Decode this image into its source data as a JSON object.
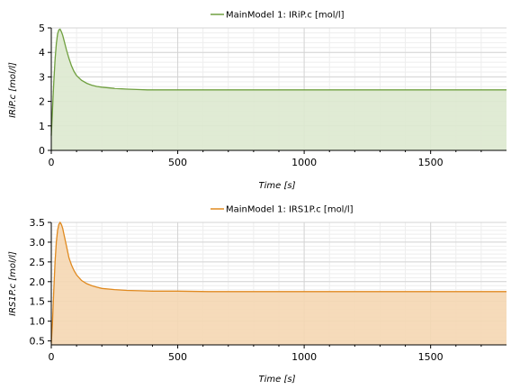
{
  "chart_data": [
    {
      "type": "area",
      "legend": "MainModel 1: IRiP.c [mol/l]",
      "xlabel": "Time [s]",
      "ylabel": "IRiP.c [mol/l]",
      "xlim": [
        0,
        1800
      ],
      "ylim": [
        0,
        5
      ],
      "xticks": [
        0,
        500,
        1000,
        1500
      ],
      "yticks": [
        0,
        1,
        2,
        3,
        4,
        5
      ],
      "grid": true,
      "legend_position": "top-center",
      "color": "#70a040",
      "fill": "#dde9cf",
      "series": [
        {
          "name": "MainModel 1: IRiP.c [mol/l]",
          "x": [
            0,
            5,
            10,
            15,
            20,
            25,
            30,
            35,
            40,
            45,
            50,
            60,
            70,
            80,
            90,
            100,
            120,
            140,
            160,
            180,
            200,
            250,
            300,
            350,
            380,
            400,
            500,
            800,
            1200,
            1800
          ],
          "y": [
            0.6,
            1.7,
            2.8,
            3.7,
            4.35,
            4.75,
            4.92,
            4.95,
            4.85,
            4.7,
            4.5,
            4.1,
            3.75,
            3.45,
            3.22,
            3.05,
            2.86,
            2.74,
            2.66,
            2.61,
            2.58,
            2.53,
            2.5,
            2.48,
            2.47,
            2.47,
            2.47,
            2.47,
            2.47,
            2.47
          ]
        }
      ]
    },
    {
      "type": "area",
      "legend": "MainModel 1: IRS1P.c [mol/l]",
      "xlabel": "Time [s]",
      "ylabel": "IRS1P.c [mol/l]",
      "xlim": [
        0,
        1800
      ],
      "ylim": [
        0.4,
        3.5
      ],
      "xticks": [
        0,
        500,
        1000,
        1500
      ],
      "yticks": [
        0.5,
        1.0,
        1.5,
        2.0,
        2.5,
        3.0,
        3.5
      ],
      "grid": true,
      "legend_position": "top-center",
      "color": "#e08a20",
      "fill": "#f5d7b3",
      "series": [
        {
          "name": "MainModel 1: IRS1P.c [mol/l]",
          "x": [
            0,
            5,
            10,
            15,
            20,
            25,
            30,
            35,
            40,
            45,
            50,
            60,
            70,
            80,
            90,
            100,
            120,
            140,
            160,
            180,
            200,
            250,
            300,
            350,
            400,
            500,
            620,
            1000,
            1500,
            1800
          ],
          "y": [
            0.45,
            1.0,
            1.8,
            2.5,
            3.0,
            3.3,
            3.45,
            3.5,
            3.45,
            3.35,
            3.2,
            2.9,
            2.6,
            2.42,
            2.28,
            2.17,
            2.03,
            1.95,
            1.9,
            1.86,
            1.83,
            1.8,
            1.78,
            1.77,
            1.76,
            1.76,
            1.75,
            1.75,
            1.75,
            1.75
          ]
        }
      ]
    }
  ]
}
